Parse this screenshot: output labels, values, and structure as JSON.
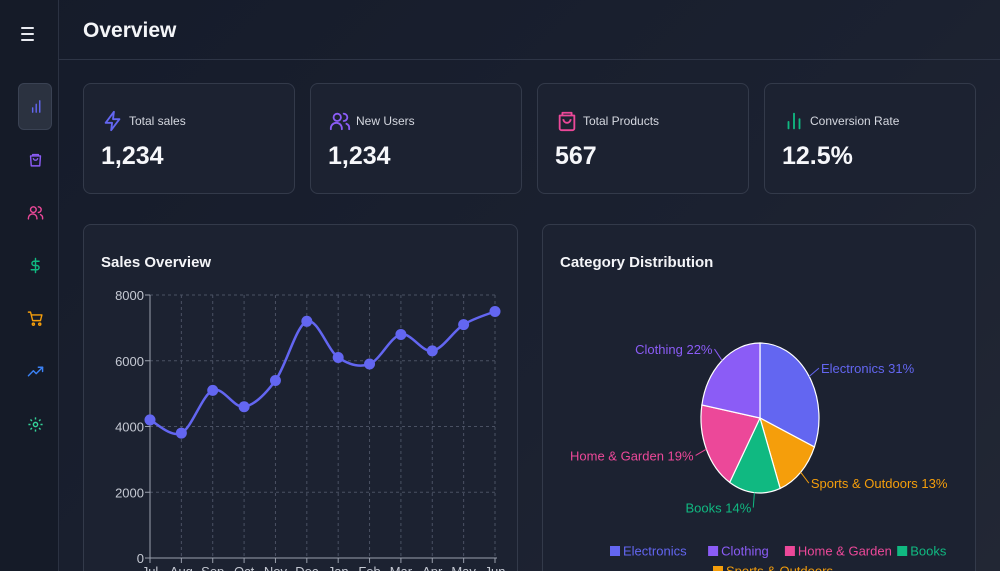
{
  "header": {
    "title": "Overview"
  },
  "sidebar": {
    "menu_icon": "menu-icon",
    "items": [
      {
        "name": "analytics",
        "icon": "bar-chart-icon",
        "color": "#6366f1",
        "active": true
      },
      {
        "name": "products",
        "icon": "shopping-bag-icon",
        "color": "#8b5cf6",
        "active": false
      },
      {
        "name": "users",
        "icon": "users-icon",
        "color": "#ec4899",
        "active": false
      },
      {
        "name": "revenue",
        "icon": "dollar-icon",
        "color": "#10b981",
        "active": false
      },
      {
        "name": "orders",
        "icon": "cart-icon",
        "color": "#f59e0b",
        "active": false
      },
      {
        "name": "trends",
        "icon": "trending-up-icon",
        "color": "#3b82f6",
        "active": false
      },
      {
        "name": "settings",
        "icon": "gear-icon",
        "color": "#34d399",
        "active": false
      }
    ]
  },
  "stats": [
    {
      "label": "Total sales",
      "value": "1,234",
      "icon": "lightning-icon",
      "color": "#6366f1"
    },
    {
      "label": "New Users",
      "value": "1,234",
      "icon": "users-icon",
      "color": "#8b5cf6"
    },
    {
      "label": "Total Products",
      "value": "567",
      "icon": "shopping-bag-icon",
      "color": "#ec4899"
    },
    {
      "label": "Conversion Rate",
      "value": "12.5%",
      "icon": "bar-chart-icon",
      "color": "#10b981"
    }
  ],
  "sales_panel": {
    "title": "Sales Overview"
  },
  "category_panel": {
    "title": "Category Distribution"
  },
  "chart_data": [
    {
      "type": "line",
      "title": "Sales Overview",
      "categories": [
        "Jul",
        "Aug",
        "Sep",
        "Oct",
        "Nov",
        "Dec",
        "Jan",
        "Feb",
        "Mar",
        "Apr",
        "May",
        "Jun"
      ],
      "series": [
        {
          "values": [
            4200,
            3800,
            5100,
            4600,
            5400,
            7200,
            6100,
            5900,
            6800,
            6300,
            7100,
            7500
          ],
          "color": "#6366f1"
        }
      ],
      "ylim": [
        0,
        8000
      ],
      "yticks": [
        0,
        2000,
        4000,
        6000,
        8000
      ],
      "grid": true
    },
    {
      "type": "pie",
      "title": "Category Distribution",
      "slices": [
        {
          "label": "Electronics",
          "value": 31,
          "color": "#6366f1",
          "display": "Electronics 31%"
        },
        {
          "label": "Sports & Outdoors",
          "value": 13,
          "color": "#f59e0b",
          "display": "Sports & Outdoors 13%"
        },
        {
          "label": "Books",
          "value": 14,
          "color": "#10b981",
          "display": "Books 14%"
        },
        {
          "label": "Home & Garden",
          "value": 19,
          "color": "#ec4899",
          "display": "Home & Garden 19%"
        },
        {
          "label": "Clothing",
          "value": 22,
          "color": "#8b5cf6",
          "display": "Clothing 22%"
        }
      ],
      "legend": [
        "Electronics",
        "Clothing",
        "Home & Garden",
        "Books",
        "Sports & Outdoors"
      ],
      "legend_position": "bottom"
    }
  ]
}
